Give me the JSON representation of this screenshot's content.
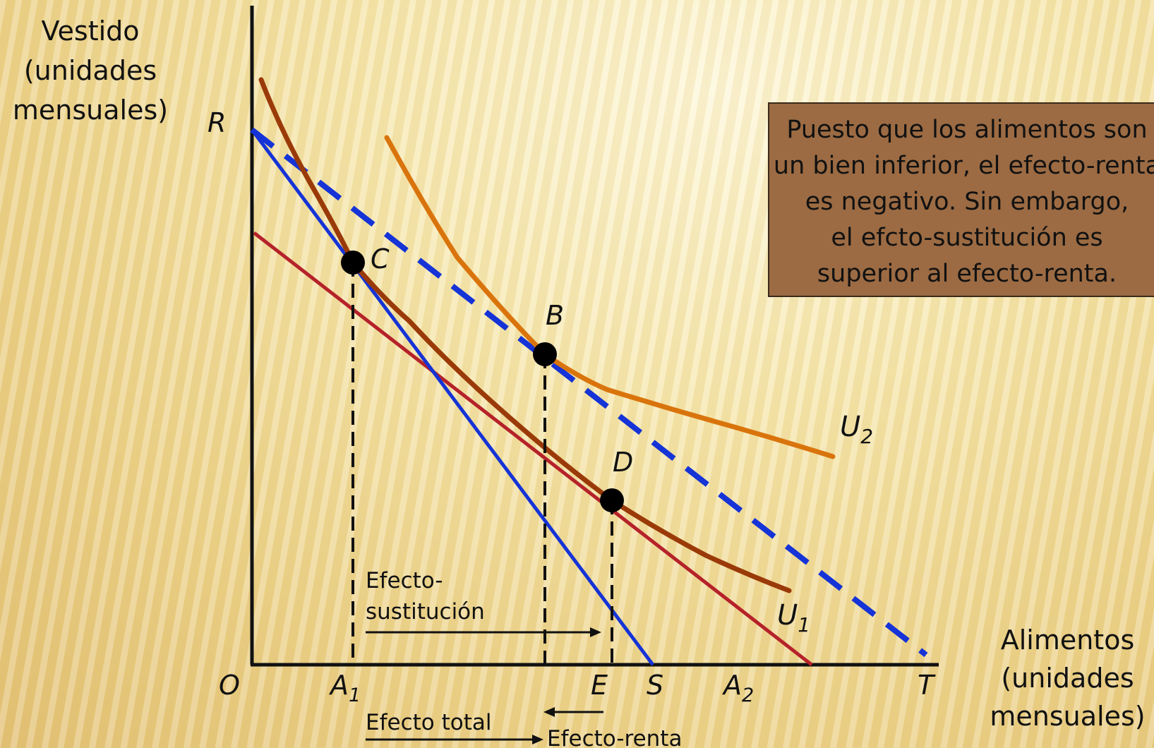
{
  "axes": {
    "y_label_lines": [
      "Vestido",
      "(unidades",
      "mensuales)"
    ],
    "x_label_lines": [
      "Alimentos",
      "(unidades",
      "mensuales)"
    ]
  },
  "points": {
    "origin": "O",
    "R": "R",
    "A1": {
      "main": "A",
      "sub": "1"
    },
    "E": "E",
    "S": "S",
    "A2": {
      "main": "A",
      "sub": "2"
    },
    "T": "T",
    "C": "C",
    "B": "B",
    "D": "D"
  },
  "curves": {
    "U1": {
      "main": "U",
      "sub": "1"
    },
    "U2": {
      "main": "U",
      "sub": "2"
    }
  },
  "effects": {
    "substitution_lines": [
      "Efecto-",
      "sustitución"
    ],
    "total": "Efecto total",
    "income": "Efecto-renta"
  },
  "callout": {
    "lines": [
      "Puesto que  los alimentos son",
      "un bien inferior, el efecto-renta",
      "es negativo. Sin embargo,",
      "el efcto-sustitución es",
      "superior al efecto-renta."
    ]
  },
  "colors": {
    "budget_initial": "#1533d6",
    "budget_final": "#b5222a",
    "budget_parallel": "#1533d6",
    "indifference_U1": "#9a3a08",
    "indifference_U2": "#d9740c",
    "callout_bg": "#9c6b43"
  }
}
